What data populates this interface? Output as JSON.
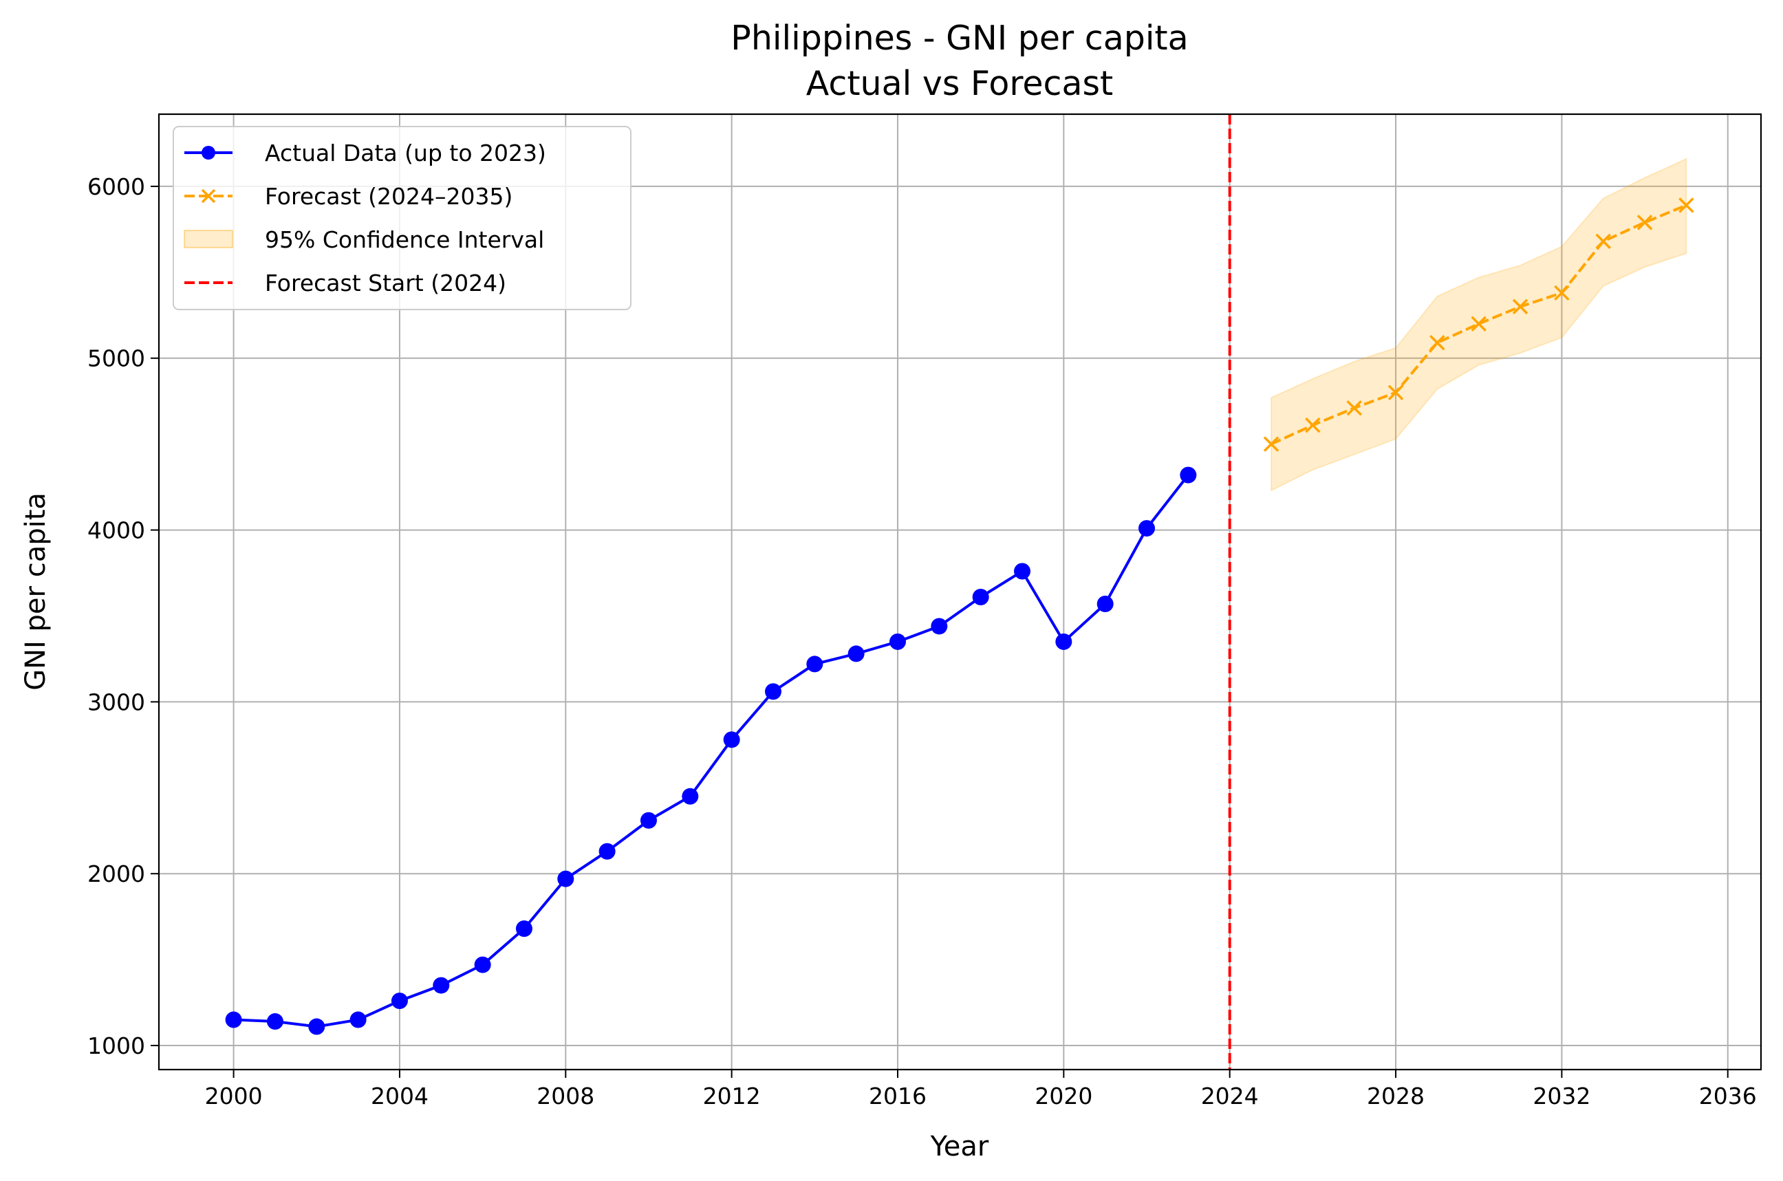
{
  "chart_data": {
    "type": "line",
    "title": "Philippines - GNI per capita",
    "subtitle": "Actual vs Forecast",
    "xlabel": "Year",
    "ylabel": "GNI per capita",
    "xlim": [
      1998.2,
      2036.8
    ],
    "ylim": [
      860,
      6420
    ],
    "xticks": [
      2000,
      2004,
      2008,
      2012,
      2016,
      2020,
      2024,
      2028,
      2032,
      2036
    ],
    "yticks": [
      1000,
      2000,
      3000,
      4000,
      5000,
      6000
    ],
    "grid": true,
    "legend_position": "top-left",
    "series": [
      {
        "name": "Actual Data (up to 2023)",
        "color": "#0000ff",
        "marker": "circle",
        "line_style": "solid",
        "x": [
          2000,
          2001,
          2002,
          2003,
          2004,
          2005,
          2006,
          2007,
          2008,
          2009,
          2010,
          2011,
          2012,
          2013,
          2014,
          2015,
          2016,
          2017,
          2018,
          2019,
          2020,
          2021,
          2022,
          2023
        ],
        "y": [
          1150,
          1140,
          1110,
          1150,
          1260,
          1350,
          1470,
          1680,
          1970,
          2130,
          2310,
          2450,
          2780,
          3060,
          3220,
          3280,
          3350,
          3440,
          3610,
          3760,
          3350,
          3570,
          4010,
          4320
        ]
      },
      {
        "name": "Forecast (2024–2035)",
        "color": "#ffa500",
        "marker": "x",
        "line_style": "dashed",
        "x": [
          2025,
          2026,
          2027,
          2028,
          2029,
          2030,
          2031,
          2032,
          2033,
          2034,
          2035
        ],
        "y": [
          4500,
          4610,
          4710,
          4800,
          5090,
          5200,
          5300,
          5380,
          5680,
          5790,
          5890
        ]
      }
    ],
    "confidence_interval": {
      "name": "95% Confidence Interval",
      "color": "#ffa500",
      "x": [
        2025,
        2026,
        2027,
        2028,
        2029,
        2030,
        2031,
        2032,
        2033,
        2034,
        2035
      ],
      "lower": [
        4230,
        4350,
        4440,
        4530,
        4820,
        4960,
        5030,
        5120,
        5420,
        5530,
        5610
      ],
      "upper": [
        4770,
        4880,
        4980,
        5060,
        5360,
        5470,
        5540,
        5650,
        5930,
        6050,
        6160
      ]
    },
    "vline": {
      "name": "Forecast Start (2024)",
      "x": 2024,
      "color": "#ff0000",
      "line_style": "dashed"
    }
  }
}
